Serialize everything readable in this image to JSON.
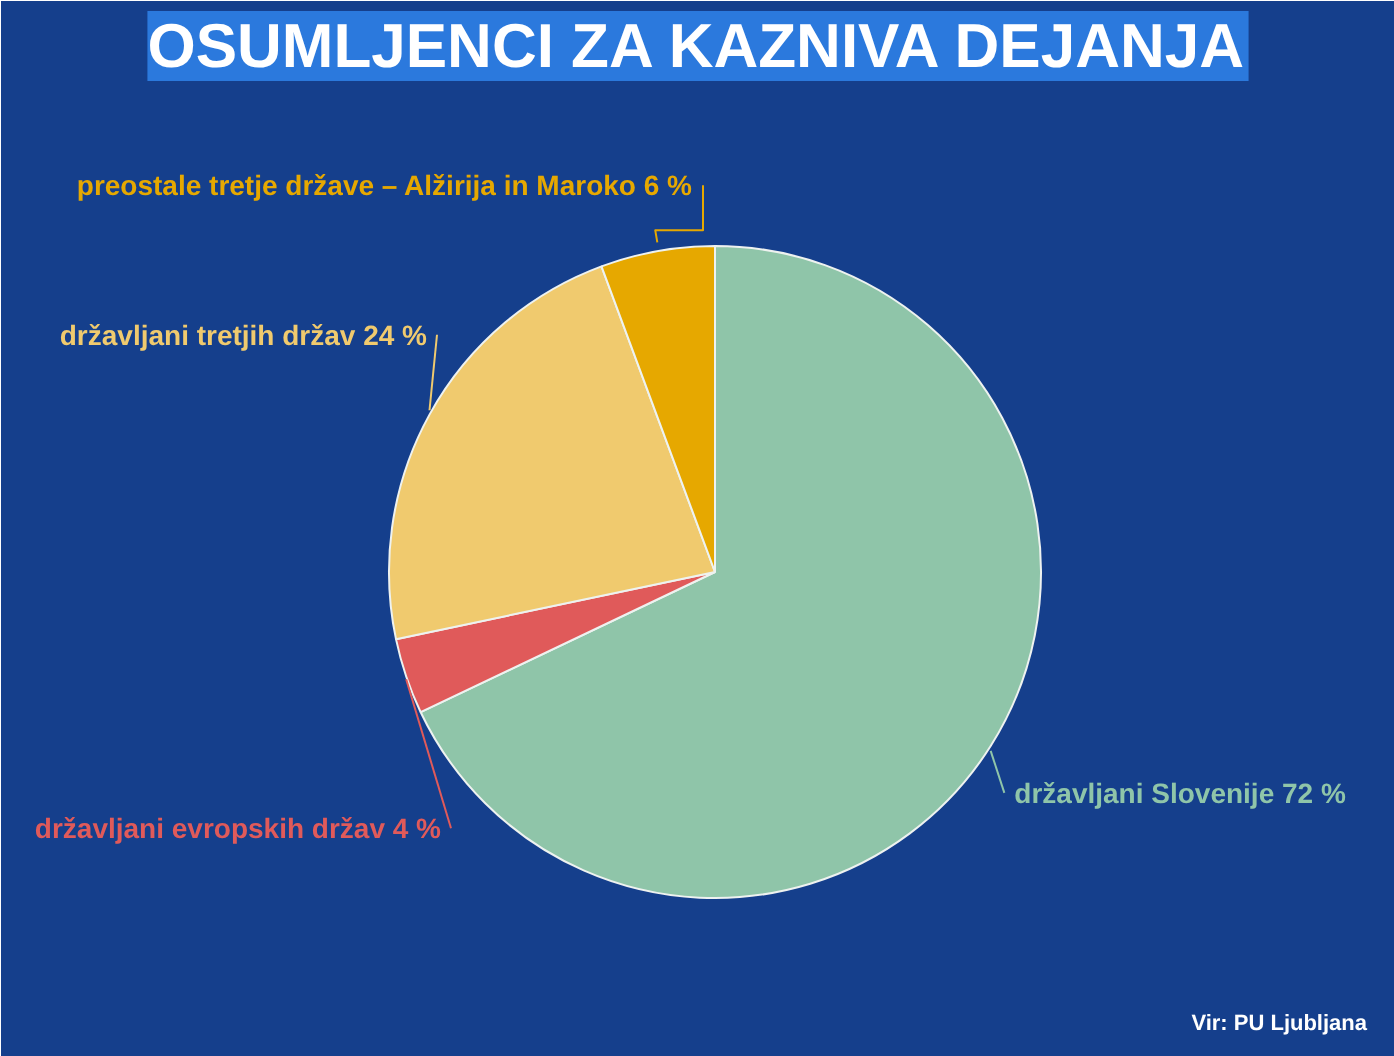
{
  "chart_data": {
    "type": "pie",
    "title": "OSUMLJENCI ZA KAZNIVA DEJANJA",
    "categories": [
      "državljani Slovenije",
      "državljani evropskih držav",
      "državljani tretjih držav",
      "preostale tretje države – Alžirija in Maroko"
    ],
    "values": [
      72,
      4,
      24,
      6
    ],
    "value_labels": [
      "72 %",
      "4 %",
      "24 %",
      "6 %"
    ],
    "colors": [
      "#8fc5a9",
      "#e05a5a",
      "#f0ca6e",
      "#e6a800"
    ],
    "annotations": [
      "Vir: PU Ljubljana"
    ],
    "legend": false
  }
}
